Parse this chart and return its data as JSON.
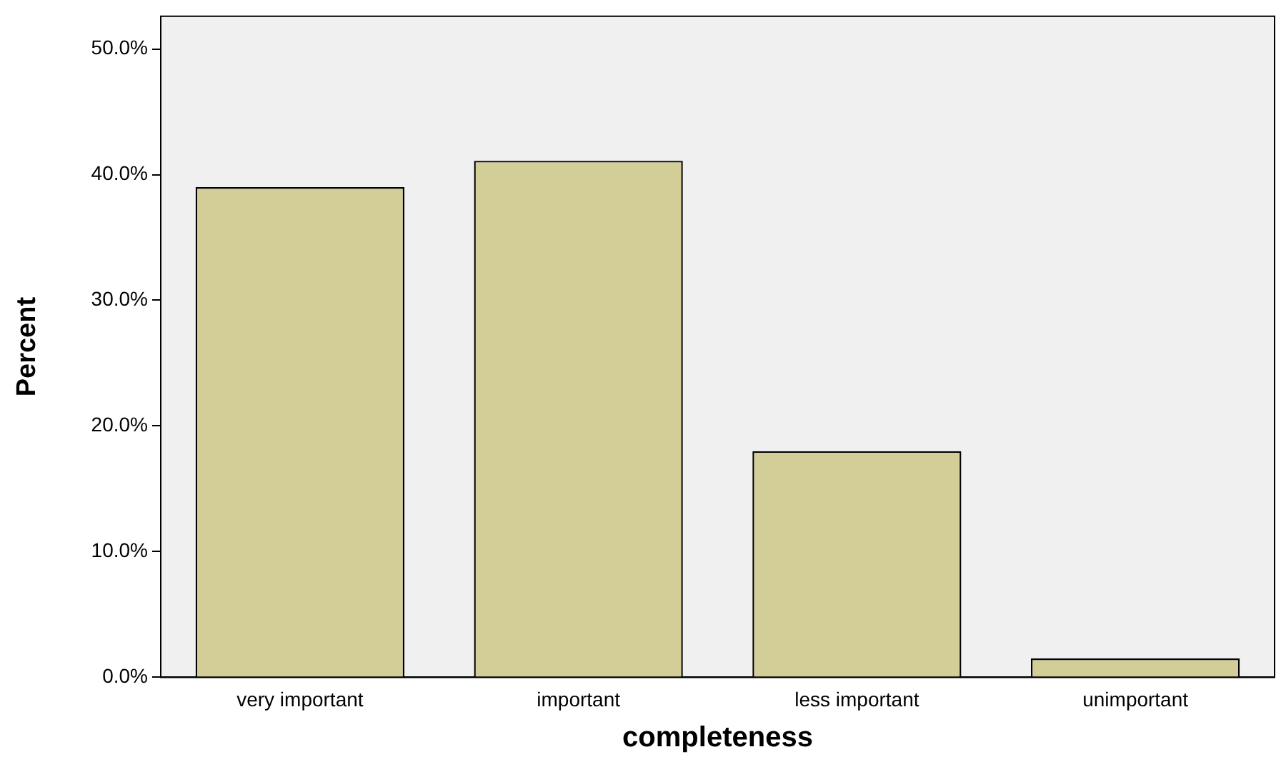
{
  "chart_data": {
    "type": "bar",
    "xlabel": "completeness",
    "ylabel": "Percent",
    "categories": [
      "very important",
      "important",
      "less important",
      "unimportant"
    ],
    "values": [
      39.0,
      41.1,
      18.0,
      1.5
    ],
    "color": "#d3ce97",
    "ylim": [
      0,
      52.6
    ],
    "yticks": [
      {
        "value": 0,
        "label": "0.0%"
      },
      {
        "value": 10,
        "label": "10.0%"
      },
      {
        "value": 20,
        "label": "20.0%"
      },
      {
        "value": 30,
        "label": "30.0%"
      },
      {
        "value": 40,
        "label": "40.0%"
      },
      {
        "value": 50,
        "label": "50.0%"
      }
    ],
    "grid": false,
    "legend": false
  }
}
